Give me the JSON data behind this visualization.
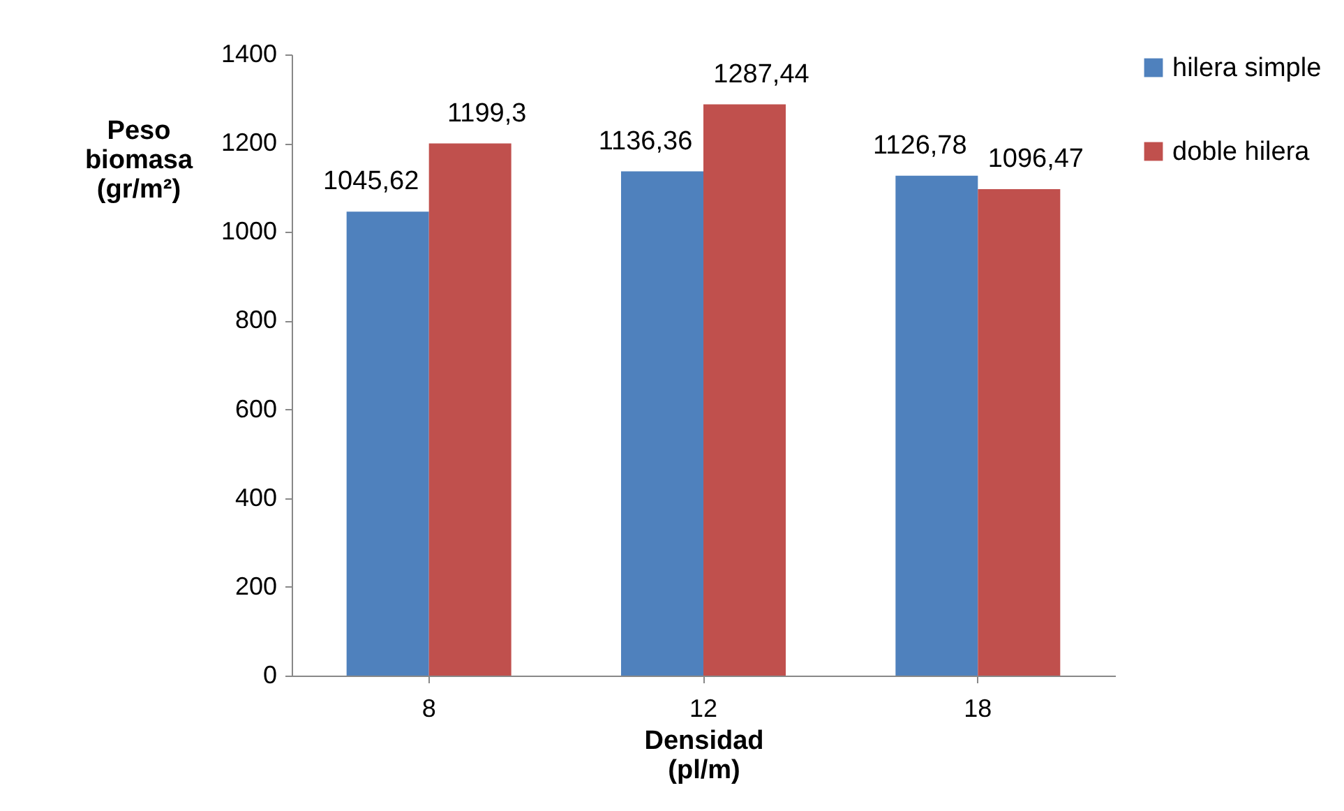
{
  "chart_data": {
    "type": "bar",
    "xlabel": "Densidad (pl/m)",
    "ylabel": "Peso biomasa (gr/m²)",
    "categories": [
      "8",
      "12",
      "18"
    ],
    "series": [
      {
        "name": "hilera simple",
        "color": "#4f81bd",
        "values": [
          1045.62,
          1136.36,
          1126.78
        ],
        "value_labels": [
          "1045,62",
          "1136,36",
          "1126,78"
        ]
      },
      {
        "name": "doble hilera",
        "color": "#c0504d",
        "values": [
          1199.3,
          1287.44,
          1096.47
        ],
        "value_labels": [
          "1199,3",
          "1287,44",
          "1096,47"
        ]
      }
    ],
    "ylim": [
      0,
      1400
    ],
    "yticks": [
      0,
      200,
      400,
      600,
      800,
      1000,
      1200,
      1400
    ],
    "grid": false,
    "legend": "right"
  }
}
